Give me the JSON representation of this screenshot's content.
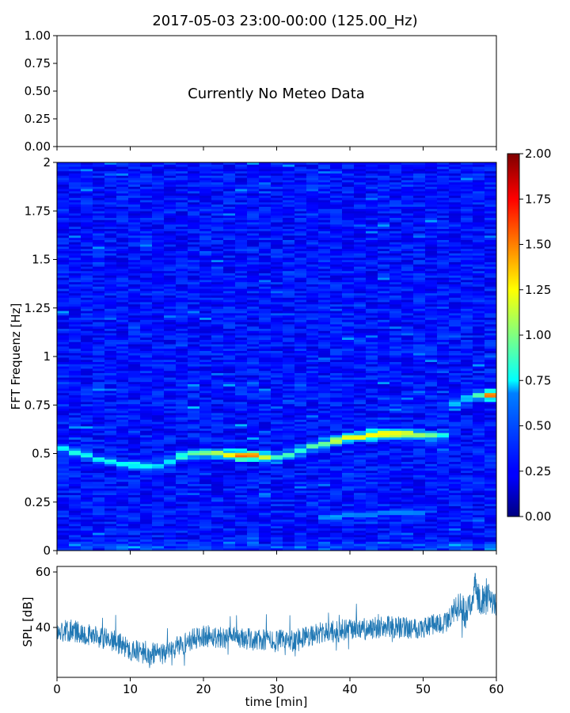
{
  "title": "2017-05-03 23:00-00:00 (125.00_Hz)",
  "chart_data": [
    {
      "type": "text",
      "panel": "meteo",
      "message": "Currently No Meteo Data",
      "ylim": [
        0,
        1
      ],
      "y_ticks": [
        "0.00",
        "0.25",
        "0.50",
        "0.75",
        "1.00"
      ],
      "grid": false
    },
    {
      "type": "heatmap",
      "panel": "spectrogram",
      "ylabel": "FFT Frequenz [Hz]",
      "xlim": [
        0,
        60
      ],
      "ylim": [
        0,
        2
      ],
      "y_ticks": [
        "0",
        "0.25",
        "0.5",
        "0.75",
        "1",
        "1.25",
        "1.5",
        "1.75",
        "2"
      ],
      "colormap": "jet",
      "colorbar": {
        "range": [
          0,
          2
        ],
        "ticks": [
          "0.00",
          "0.25",
          "0.50",
          "0.75",
          "1.00",
          "1.25",
          "1.50",
          "1.75",
          "2.00"
        ]
      },
      "background_level": 0.3,
      "series": [
        {
          "x": [
            0,
            3,
            6,
            9,
            12,
            14,
            16,
            18,
            22,
            26,
            30,
            33,
            36,
            40,
            44,
            48,
            52,
            54
          ],
          "y": [
            0.53,
            0.5,
            0.47,
            0.45,
            0.43,
            0.44,
            0.47,
            0.5,
            0.5,
            0.49,
            0.48,
            0.51,
            0.55,
            0.58,
            0.6,
            0.6,
            0.59,
            0.61
          ],
          "intensity": [
            0.7,
            0.8,
            0.75,
            0.75,
            0.8,
            0.7,
            0.75,
            0.9,
            1.1,
            1.6,
            0.9,
            0.85,
            0.95,
            1.2,
            1.3,
            1.1,
            0.9,
            0.6
          ]
        },
        {
          "x": [
            54,
            57,
            60
          ],
          "y": [
            0.75,
            0.8,
            0.8
          ],
          "intensity": [
            0.6,
            0.7,
            1.8
          ]
        },
        {
          "x": [
            35,
            40,
            45,
            50
          ],
          "y": [
            0.17,
            0.18,
            0.19,
            0.19
          ],
          "intensity": [
            0.55,
            0.55,
            0.5,
            0.5
          ]
        }
      ],
      "grid": false
    },
    {
      "type": "line",
      "panel": "spl",
      "xlabel": "time [min]",
      "ylabel": "SPL [dB]",
      "xlim": [
        0,
        60
      ],
      "ylim": [
        22,
        62
      ],
      "x_ticks": [
        "0",
        "10",
        "20",
        "30",
        "40",
        "50",
        "60"
      ],
      "y_ticks": [
        "40",
        "60"
      ],
      "color": "#1f77b4",
      "series": [
        {
          "x": [
            0,
            2,
            5,
            8,
            10,
            13,
            15,
            17,
            20,
            25,
            30,
            33,
            36,
            40,
            45,
            50,
            53,
            55,
            56,
            57,
            58,
            60
          ],
          "y": [
            38,
            39,
            37,
            35,
            32,
            30,
            31,
            34,
            37,
            36,
            35,
            36,
            38,
            39,
            40,
            40,
            42,
            48,
            44,
            54,
            50,
            49
          ],
          "spread": [
            4,
            4,
            4,
            4,
            4,
            4,
            4,
            4,
            4,
            4,
            4,
            4,
            4,
            4,
            4,
            4,
            4,
            5,
            6,
            6,
            6,
            5
          ]
        }
      ],
      "grid": false
    }
  ]
}
